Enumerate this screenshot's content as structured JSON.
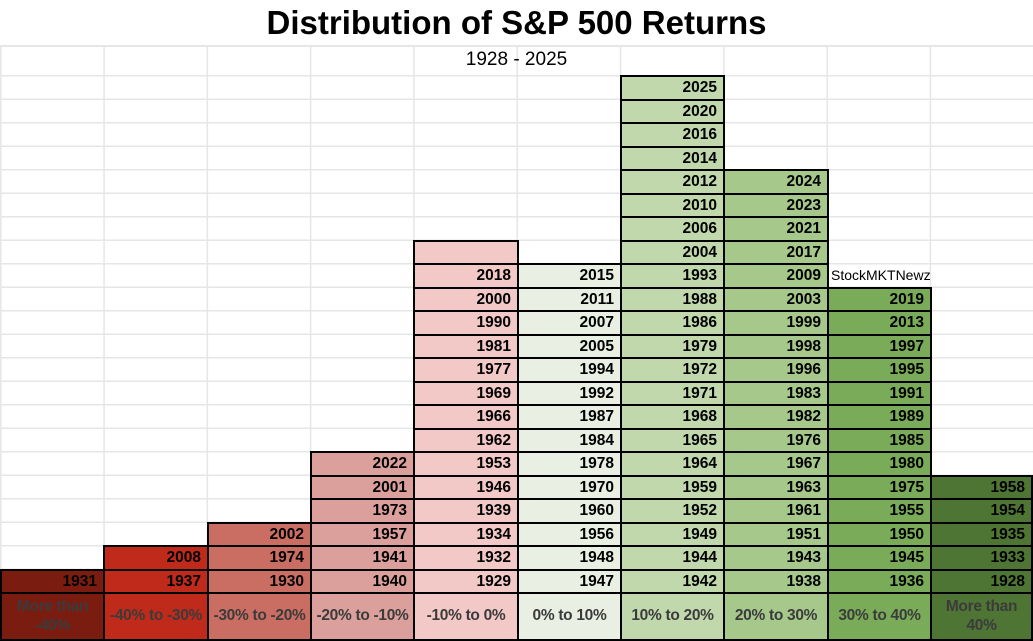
{
  "chart_data": {
    "type": "bar",
    "title": "Distribution of S&P 500 Returns",
    "subtitle": "1928 - 2025",
    "watermark": "StockMKTNewz",
    "grid": true,
    "background_color": "#ffffff",
    "gridline_color": "#e6e6e6",
    "cell_border_color": "#000000",
    "bin_label_text_color": "#3b3b3b",
    "categories": [
      "More than -40%",
      "-40% to -30%",
      "-30% to -20%",
      "-20% to -10%",
      "-10% to 0%",
      "0% to 10%",
      "10% to 20%",
      "20% to 30%",
      "30% to 40%",
      "More than 40%"
    ],
    "counts_per_bin": [
      1,
      2,
      3,
      6,
      14,
      14,
      22,
      18,
      13,
      5
    ],
    "bins": [
      {
        "range": "More than -40%",
        "label_lines": [
          "More than",
          "-40%"
        ],
        "color": "#7b1c11",
        "empty_top_cells": 0,
        "years": [
          "1931"
        ]
      },
      {
        "range": "-40% to -30%",
        "label_lines": [
          "-40% to -30%"
        ],
        "color": "#c02a1a",
        "empty_top_cells": 0,
        "years": [
          "2008",
          "1937"
        ]
      },
      {
        "range": "-30% to -20%",
        "label_lines": [
          "-30% to -20%"
        ],
        "color": "#ca6e64",
        "empty_top_cells": 0,
        "years": [
          "2002",
          "1974",
          "1930"
        ]
      },
      {
        "range": "-20% to -10%",
        "label_lines": [
          "-20% to -10%"
        ],
        "color": "#dba09c",
        "empty_top_cells": 0,
        "years": [
          "2022",
          "2001",
          "1973",
          "1957",
          "1941",
          "1940"
        ]
      },
      {
        "range": "-10% to 0%",
        "label_lines": [
          "-10% to 0%"
        ],
        "color": "#f2c9c7",
        "empty_top_cells": 1,
        "years": [
          "2018",
          "2000",
          "1990",
          "1981",
          "1977",
          "1969",
          "1966",
          "1962",
          "1953",
          "1946",
          "1939",
          "1934",
          "1932",
          "1929"
        ]
      },
      {
        "range": "0% to 10%",
        "label_lines": [
          "0% to 10%"
        ],
        "color": "#e9efe3",
        "empty_top_cells": 0,
        "years": [
          "2015",
          "2011",
          "2007",
          "2005",
          "1994",
          "1992",
          "1987",
          "1984",
          "1978",
          "1970",
          "1960",
          "1956",
          "1948",
          "1947"
        ]
      },
      {
        "range": "10% to 20%",
        "label_lines": [
          "10% to 20%"
        ],
        "color": "#c0d8ac",
        "empty_top_cells": 0,
        "years": [
          "2025",
          "2020",
          "2016",
          "2014",
          "2012",
          "2010",
          "2006",
          "2004",
          "1993",
          "1988",
          "1986",
          "1979",
          "1972",
          "1971",
          "1968",
          "1965",
          "1964",
          "1959",
          "1952",
          "1949",
          "1944",
          "1942"
        ]
      },
      {
        "range": "20% to 30%",
        "label_lines": [
          "20% to 30%"
        ],
        "color": "#a6c88b",
        "empty_top_cells": 0,
        "years": [
          "2024",
          "2023",
          "2021",
          "2017",
          "2009",
          "2003",
          "1999",
          "1998",
          "1996",
          "1983",
          "1982",
          "1976",
          "1967",
          "1963",
          "1961",
          "1951",
          "1943",
          "1938"
        ]
      },
      {
        "range": "30% to 40%",
        "label_lines": [
          "30% to 40%"
        ],
        "color": "#7aab58",
        "empty_top_cells": 0,
        "years": [
          "2019",
          "2013",
          "1997",
          "1995",
          "1991",
          "1989",
          "1985",
          "1980",
          "1975",
          "1955",
          "1950",
          "1945",
          "1936"
        ]
      },
      {
        "range": "More than 40%",
        "label_lines": [
          "More than",
          "40%"
        ],
        "color": "#4e7533",
        "empty_top_cells": 0,
        "years": [
          "1958",
          "1954",
          "1935",
          "1933",
          "1928"
        ]
      }
    ]
  }
}
